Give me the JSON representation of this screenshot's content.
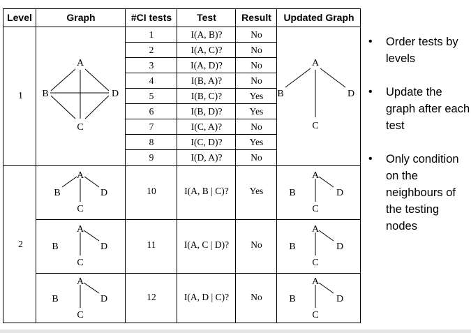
{
  "table": {
    "headers": [
      "Level",
      "Graph",
      "#CI tests",
      "Test",
      "Result",
      "Updated Graph"
    ],
    "level1": {
      "level": "1",
      "rows": [
        {
          "num": "1",
          "test": "I(A, B)?",
          "result": "No"
        },
        {
          "num": "2",
          "test": "I(A, C)?",
          "result": "No"
        },
        {
          "num": "3",
          "test": "I(A, D)?",
          "result": "No"
        },
        {
          "num": "4",
          "test": "I(B, A)?",
          "result": "No"
        },
        {
          "num": "5",
          "test": "I(B, C)?",
          "result": "Yes"
        },
        {
          "num": "6",
          "test": "I(B, D)?",
          "result": "Yes"
        },
        {
          "num": "7",
          "test": "I(C, A)?",
          "result": "No"
        },
        {
          "num": "8",
          "test": "I(C, D)?",
          "result": "Yes"
        },
        {
          "num": "9",
          "test": "I(D, A)?",
          "result": "No"
        }
      ]
    },
    "level2": {
      "level": "2",
      "rows": [
        {
          "num": "10",
          "test": "I(A, B | C)?",
          "result": "Yes"
        },
        {
          "num": "11",
          "test": "I(A, C | D)?",
          "result": "No"
        },
        {
          "num": "12",
          "test": "I(A, D | C)?",
          "result": "No"
        }
      ]
    }
  },
  "nodes": {
    "a": "A",
    "b": "B",
    "c": "C",
    "d": "D"
  },
  "bullets": [
    "Order tests by levels",
    "Update the graph after each test",
    "Only condition on the neighbours of the testing nodes"
  ]
}
